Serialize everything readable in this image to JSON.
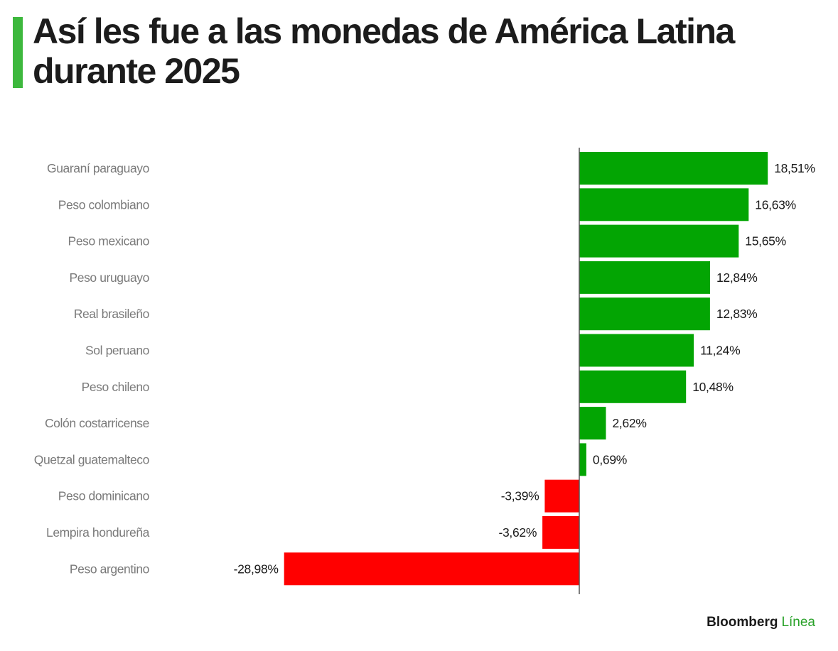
{
  "chart_data": {
    "type": "bar",
    "orientation": "horizontal",
    "title": "Así les fue a las monedas de América Latina durante 2025",
    "categories": [
      "Guaraní paraguayo",
      "Peso colombiano",
      "Peso mexicano",
      "Peso uruguayo",
      "Real brasileño",
      "Sol peruano",
      "Peso chileno",
      "Colón costarricense",
      "Quetzal guatemalteco",
      "Peso dominicano",
      "Lempira hondureña",
      "Peso argentino"
    ],
    "values": [
      18.51,
      16.63,
      15.65,
      12.84,
      12.83,
      11.24,
      10.48,
      2.62,
      0.69,
      -3.39,
      -3.62,
      -28.98
    ],
    "value_labels": [
      "18,51%",
      "16,63%",
      "15,65%",
      "12,84%",
      "12,83%",
      "11,24%",
      "10,48%",
      "2,62%",
      "0,69%",
      "-3,39%",
      "-3,62%",
      "-28,98%"
    ],
    "xlim": [
      -28.98,
      18.51
    ],
    "grid": false,
    "legend": "none",
    "colors": {
      "positive": "#03a503",
      "negative": "#ff0000",
      "axis": "#555555",
      "category_text": "#7a7a7a",
      "value_text": "#1a1a1a",
      "title_bar": "#3db83d"
    }
  },
  "header": {
    "title": "Así les fue a las monedas de América Latina durante 2025"
  },
  "footer": {
    "brand": "Bloomberg",
    "brand_accent": "Línea",
    "accent_color": "#27a027"
  }
}
